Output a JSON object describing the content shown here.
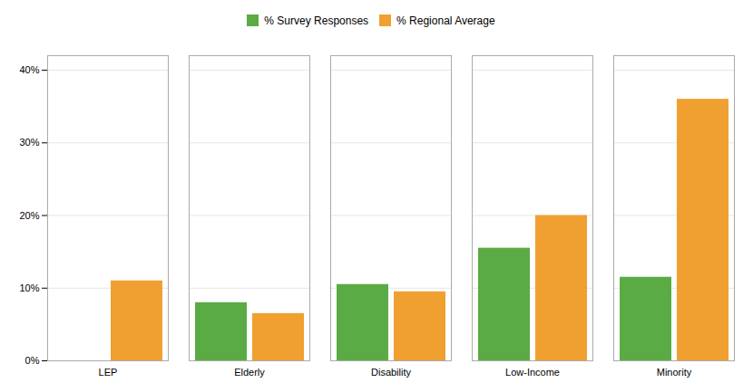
{
  "chart_data": {
    "type": "bar",
    "categories": [
      "LEP",
      "Elderly",
      "Disability",
      "Low-Income",
      "Minority"
    ],
    "series": [
      {
        "name": "% Survey Responses",
        "color": "#5aab43",
        "values": [
          0,
          8.0,
          10.5,
          15.5,
          11.5
        ]
      },
      {
        "name": "% Regional Average",
        "color": "#f0a030",
        "values": [
          11.0,
          6.5,
          9.5,
          20.0,
          36.0
        ]
      }
    ],
    "ylim": [
      0,
      42
    ],
    "yticks": [
      {
        "value": 0,
        "label": "0%"
      },
      {
        "value": 10,
        "label": "10%"
      },
      {
        "value": 20,
        "label": "20%"
      },
      {
        "value": 30,
        "label": "30%"
      },
      {
        "value": 40,
        "label": "40%"
      }
    ],
    "grid": true,
    "legend": "top"
  }
}
